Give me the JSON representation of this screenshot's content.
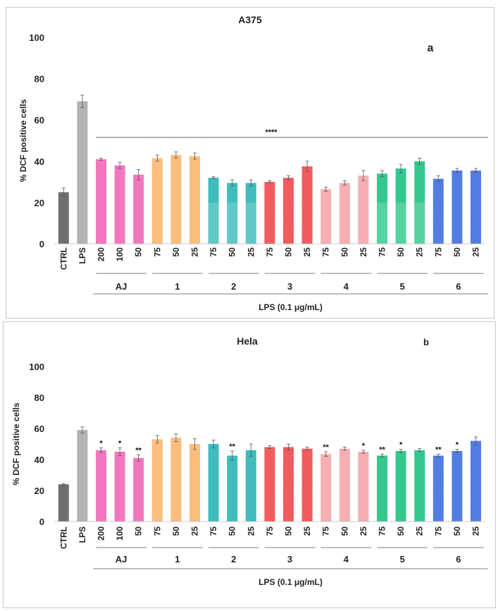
{
  "colors": {
    "CTRL": "#6f6f6f",
    "LPS": "#b2b2b2",
    "AJ": "#f277be",
    "1": "#fbbe7c",
    "2": "#3fbcbc",
    "3": "#f04e52",
    "4": "#f5aeb2",
    "5": "#35c88e",
    "6": "#4c78e0",
    "error_bar": "#555555",
    "axis_line": "#bbbbbb"
  },
  "chart_data": [
    {
      "type": "bar",
      "panel": "a",
      "title": "A375",
      "panel_letter": "a",
      "ylabel": "% DCF positive cells",
      "ylim": [
        0,
        100
      ],
      "yticks": [
        "0",
        "20",
        "40",
        "60",
        "80",
        "100"
      ],
      "categories": [
        "CTRL",
        "LPS",
        "200",
        "100",
        "50",
        "75",
        "50",
        "25",
        "75",
        "50",
        "25",
        "75",
        "50",
        "25",
        "75",
        "50",
        "25",
        "75",
        "50",
        "25",
        "75",
        "50",
        "25"
      ],
      "series_keys": [
        "CTRL",
        "LPS",
        "AJ",
        "AJ",
        "AJ",
        "1",
        "1",
        "1",
        "2",
        "2",
        "2",
        "3",
        "3",
        "3",
        "4",
        "4",
        "4",
        "5",
        "5",
        "5",
        "6",
        "6",
        "6"
      ],
      "values": [
        25,
        69,
        41,
        38,
        33.5,
        41.5,
        43,
        42.5,
        32,
        29.5,
        29.5,
        30,
        32,
        37.5,
        26.5,
        29.5,
        33,
        34,
        36.5,
        40,
        31.5,
        35.5,
        35.5
      ],
      "errors": [
        2,
        3,
        0.5,
        1.5,
        2.5,
        1.5,
        1.5,
        1.5,
        0.5,
        1.5,
        1.5,
        0.5,
        1,
        2.5,
        1,
        1,
        2.5,
        1.5,
        2,
        1.5,
        1.5,
        1,
        1
      ],
      "significance": [
        "",
        "",
        "",
        "",
        "",
        "",
        "",
        "",
        "",
        "",
        "",
        "",
        "",
        "",
        "",
        "",
        "",
        "",
        "",
        "",
        "",
        "",
        ""
      ],
      "bracket_label": "****",
      "groups": [
        {
          "label": "AJ",
          "start": 2,
          "end": 4
        },
        {
          "label": "1",
          "start": 5,
          "end": 7
        },
        {
          "label": "2",
          "start": 8,
          "end": 10
        },
        {
          "label": "3",
          "start": 11,
          "end": 13
        },
        {
          "label": "4",
          "start": 14,
          "end": 16
        },
        {
          "label": "5",
          "start": 17,
          "end": 19
        },
        {
          "label": "6",
          "start": 20,
          "end": 22
        }
      ],
      "overall_label": "LPS (0.1 μg/mL)"
    },
    {
      "type": "bar",
      "panel": "b",
      "title": "Hela",
      "panel_letter": "b",
      "ylabel": "% DCF positive cells",
      "ylim": [
        0,
        100
      ],
      "yticks": [
        "0",
        "20",
        "40",
        "60",
        "80",
        "100"
      ],
      "categories": [
        "CTRL",
        "LPS",
        "200",
        "100",
        "50",
        "75",
        "50",
        "25",
        "75",
        "50",
        "25",
        "75",
        "50",
        "25",
        "75",
        "50",
        "25",
        "75",
        "50",
        "25",
        "75",
        "50",
        "25"
      ],
      "series_keys": [
        "CTRL",
        "LPS",
        "AJ",
        "AJ",
        "AJ",
        "1",
        "1",
        "1",
        "2",
        "2",
        "2",
        "3",
        "3",
        "3",
        "4",
        "4",
        "4",
        "5",
        "5",
        "5",
        "6",
        "6",
        "6"
      ],
      "values": [
        24,
        59,
        46,
        45,
        41,
        53,
        54,
        50,
        50,
        42.5,
        46,
        48,
        48,
        47,
        43.5,
        47,
        45,
        42.5,
        45.5,
        46,
        42.5,
        45.5,
        52
      ],
      "errors": [
        0.5,
        2,
        1.5,
        2.5,
        2,
        2.5,
        2.5,
        3.5,
        2.5,
        3,
        4,
        1,
        2,
        1,
        1.5,
        1,
        1,
        1,
        1,
        1,
        1,
        1,
        2.5
      ],
      "significance": [
        "",
        "",
        "*",
        "*",
        "**",
        "",
        "",
        "",
        "",
        "**",
        "",
        "",
        "",
        "",
        "**",
        "",
        "*",
        "**",
        "*",
        "",
        "**",
        "*",
        ""
      ],
      "bracket_label": "",
      "groups": [
        {
          "label": "AJ",
          "start": 2,
          "end": 4
        },
        {
          "label": "1",
          "start": 5,
          "end": 7
        },
        {
          "label": "2",
          "start": 8,
          "end": 10
        },
        {
          "label": "3",
          "start": 11,
          "end": 13
        },
        {
          "label": "4",
          "start": 14,
          "end": 16
        },
        {
          "label": "5",
          "start": 17,
          "end": 19
        },
        {
          "label": "6",
          "start": 20,
          "end": 22
        }
      ],
      "overall_label": "LPS (0.1 μg/mL)"
    }
  ]
}
